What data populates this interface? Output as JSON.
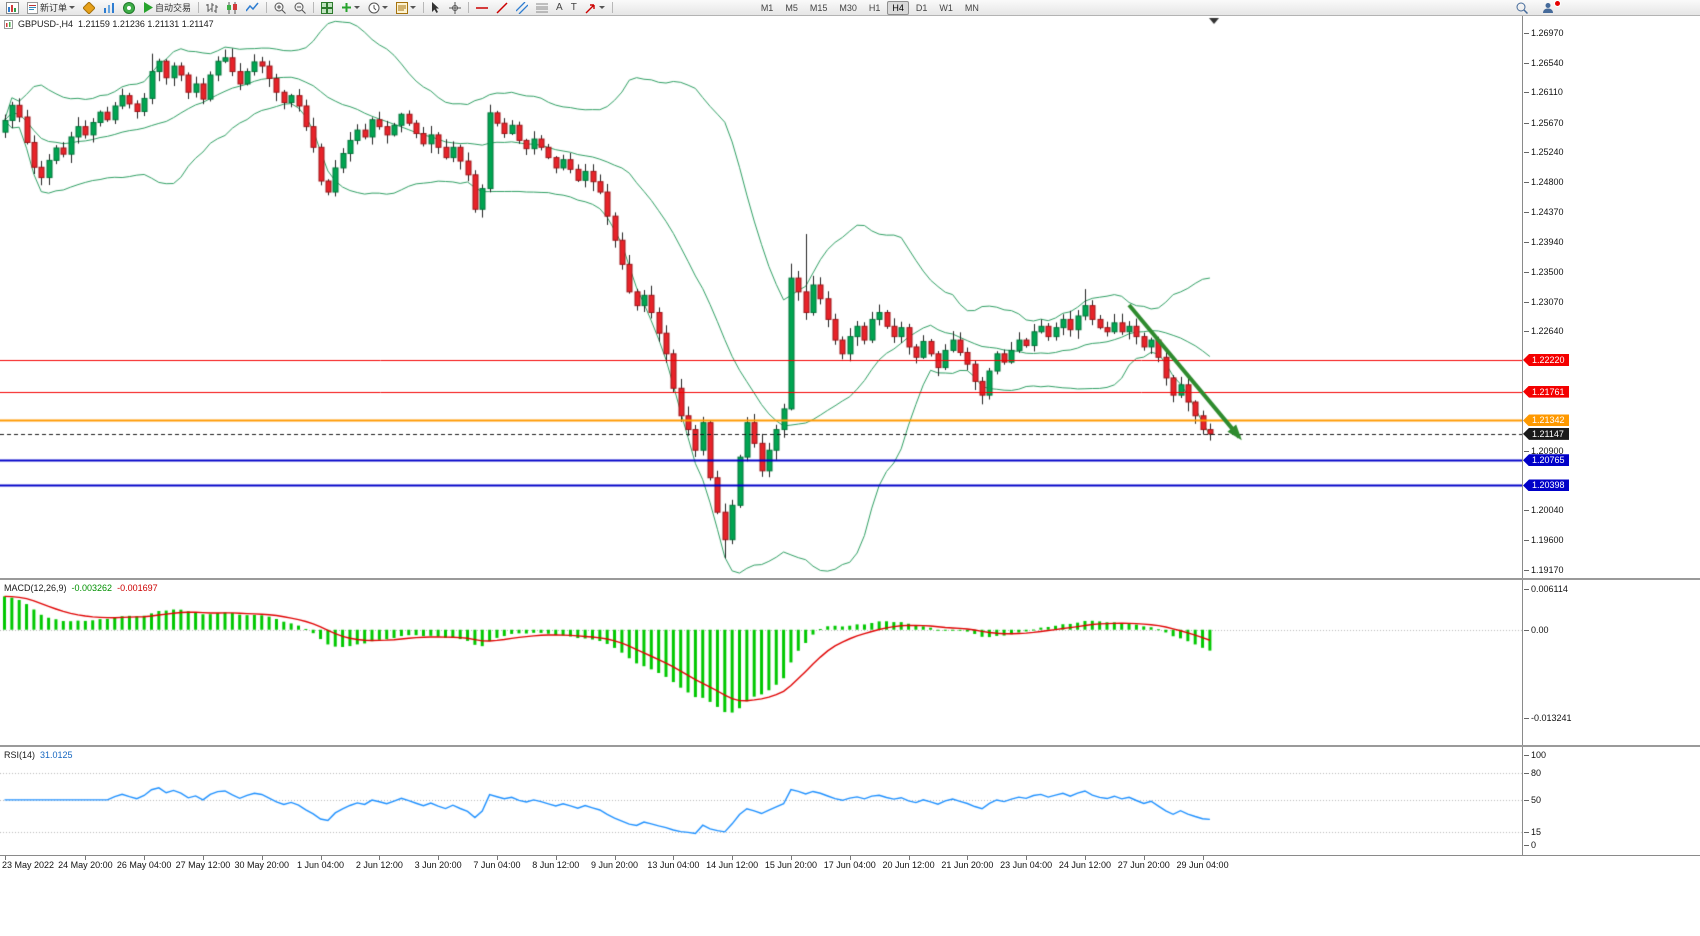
{
  "toolbar": {
    "new_order_label": "新订单",
    "autotrade_label": "自动交易",
    "text_tool": "A",
    "label_tool": "T",
    "timeframes": [
      "M1",
      "M5",
      "M15",
      "M30",
      "H1",
      "H4",
      "D1",
      "W1",
      "MN"
    ],
    "active_timeframe": "H4"
  },
  "chart_title": {
    "symbol_period": "GBPUSD-,H4",
    "ohlc": "1.21159 1.21236 1.21131 1.21147"
  },
  "indicators": {
    "macd": {
      "label": "MACD(12,26,9)",
      "value_main": "-0.003262",
      "value_signal": "-0.001697",
      "axis_labels": [
        "0.006114",
        "0.00",
        "-0.013241"
      ]
    },
    "rsi": {
      "label": "RSI(14)",
      "value": "31.0125",
      "axis_labels": [
        "100",
        "80",
        "50",
        "15",
        "0"
      ],
      "level_lines": [
        80,
        50,
        15
      ]
    }
  },
  "chart_data": {
    "type": "candlestick",
    "symbol": "GBPUSD-",
    "timeframe": "H4",
    "current_ohlc": {
      "open": 1.21159,
      "high": 1.21236,
      "low": 1.21131,
      "close": 1.21147
    },
    "first_open": 1.2553,
    "closes": [
      1.257,
      1.2592,
      1.2575,
      1.2538,
      1.2502,
      1.2487,
      1.2512,
      1.253,
      1.2521,
      1.2546,
      1.2561,
      1.2549,
      1.2567,
      1.2582,
      1.2571,
      1.2591,
      1.2606,
      1.2594,
      1.2583,
      1.2602,
      1.2641,
      1.2656,
      1.2632,
      1.2649,
      1.2636,
      1.2611,
      1.2623,
      1.2601,
      1.2636,
      1.2656,
      1.2661,
      1.2641,
      1.2623,
      1.2641,
      1.2655,
      1.2649,
      1.2631,
      1.2611,
      1.2596,
      1.2606,
      1.2591,
      1.2561,
      1.2531,
      1.2482,
      1.2466,
      1.2501,
      1.2522,
      1.2541,
      1.2556,
      1.2546,
      1.2571,
      1.2561,
      1.2549,
      1.2563,
      1.2579,
      1.2566,
      1.2551,
      1.2536,
      1.2549,
      1.2531,
      1.2516,
      1.2531,
      1.2511,
      1.2491,
      1.2441,
      1.2471,
      1.2581,
      1.2566,
      1.2551,
      1.2563,
      1.2541,
      1.2529,
      1.2543,
      1.2531,
      1.2516,
      1.2501,
      1.2513,
      1.2499,
      1.2483,
      1.2496,
      1.2481,
      1.2466,
      1.2431,
      1.2396,
      1.2361,
      1.2321,
      1.2301,
      1.2316,
      1.2291,
      1.2261,
      1.2231,
      1.2181,
      1.2141,
      1.2121,
      1.2091,
      1.2131,
      1.2051,
      1.2001,
      1.1961,
      1.2011,
      1.2081,
      1.2131,
      1.2101,
      1.2061,
      1.2091,
      1.2121,
      1.2151,
      1.2341,
      1.2321,
      1.2291,
      1.2331,
      1.2311,
      1.2281,
      1.2251,
      1.2231,
      1.2256,
      1.2271,
      1.2251,
      1.2281,
      1.2291,
      1.2271,
      1.2256,
      1.2269,
      1.2241,
      1.2226,
      1.2249,
      1.2231,
      1.2211,
      1.2236,
      1.2251,
      1.2233,
      1.2216,
      1.2191,
      1.2171,
      1.2206,
      1.2231,
      1.2219,
      1.2236,
      1.2251,
      1.2243,
      1.2263,
      1.2271,
      1.2256,
      1.2269,
      1.2281,
      1.2266,
      1.2286,
      1.2301,
      1.2281,
      1.2269,
      1.2263,
      1.2276,
      1.2263,
      1.2271,
      1.2256,
      1.2241,
      1.2251,
      1.2226,
      1.2196,
      1.2171,
      1.2186,
      1.2161,
      1.2141,
      1.2121,
      1.21147
    ],
    "wick_overrides": [
      {
        "bar": 5,
        "low": 1.2476
      },
      {
        "bar": 20,
        "high": 1.2667
      },
      {
        "bar": 30,
        "high": 1.2673
      },
      {
        "bar": 64,
        "low": 1.2436
      },
      {
        "bar": 98,
        "low": 1.1934
      },
      {
        "bar": 107,
        "high": 1.2362
      },
      {
        "bar": 109,
        "high": 1.2405
      },
      {
        "bar": 147,
        "high": 1.2325
      }
    ],
    "bollinger": {
      "period": 20,
      "deviation": 2
    },
    "macd_params": {
      "fast": 12,
      "slow": 26,
      "signal": 9
    },
    "rsi_params": {
      "period": 14
    },
    "levels": [
      {
        "price": 1.2222,
        "label": "1.22220",
        "color": "#f40000",
        "width": 1,
        "style": "solid"
      },
      {
        "price": 1.21761,
        "label": "1.21761",
        "color": "#f40000",
        "width": 1,
        "style": "solid"
      },
      {
        "price": 1.21342,
        "label": "1.21342",
        "color": "#ff9900",
        "width": 2,
        "style": "solid"
      },
      {
        "price": 1.21147,
        "label": "1.21147",
        "color": "#1a1a1a",
        "width": 1,
        "style": "dash",
        "role": "current-price"
      },
      {
        "price": 1.20765,
        "label": "1.20765",
        "color": "#0000c8",
        "width": 2,
        "style": "solid"
      },
      {
        "price": 1.20398,
        "label": "1.20398",
        "color": "#0000c8",
        "width": 2,
        "style": "solid"
      }
    ],
    "price_ticks": [
      "1.26970",
      "1.26540",
      "1.26110",
      "1.25670",
      "1.25240",
      "1.24800",
      "1.24370",
      "1.23940",
      "1.23500",
      "1.23070",
      "1.22640",
      "1.20900",
      "1.20040",
      "1.19600",
      "1.19170"
    ],
    "time_labels": [
      {
        "text": "23 May 2022",
        "bar": 0
      },
      {
        "text": "24 May 20:00",
        "bar": 11
      },
      {
        "text": "26 May 04:00",
        "bar": 19
      },
      {
        "text": "27 May 12:00",
        "bar": 27
      },
      {
        "text": "30 May 20:00",
        "bar": 35
      },
      {
        "text": "1 Jun 04:00",
        "bar": 43
      },
      {
        "text": "2 Jun 12:00",
        "bar": 51
      },
      {
        "text": "3 Jun 20:00",
        "bar": 59
      },
      {
        "text": "7 Jun 04:00",
        "bar": 67
      },
      {
        "text": "8 Jun 12:00",
        "bar": 75
      },
      {
        "text": "9 Jun 20:00",
        "bar": 83
      },
      {
        "text": "13 Jun 04:00",
        "bar": 91
      },
      {
        "text": "14 Jun 12:00",
        "bar": 99
      },
      {
        "text": "15 Jun 20:00",
        "bar": 107
      },
      {
        "text": "17 Jun 04:00",
        "bar": 115
      },
      {
        "text": "20 Jun 12:00",
        "bar": 123
      },
      {
        "text": "21 Jun 20:00",
        "bar": 131
      },
      {
        "text": "23 Jun 04:00",
        "bar": 139
      },
      {
        "text": "24 Jun 12:00",
        "bar": 147
      },
      {
        "text": "27 Jun 20:00",
        "bar": 155
      },
      {
        "text": "29 Jun 04:00",
        "bar": 163
      }
    ],
    "arrow": {
      "from_bar": 153,
      "from_price": 1.2302,
      "to_bar": 168,
      "to_price": 1.211
    }
  },
  "colors": {
    "candle_up": "#00a551",
    "candle_up_border": "#00753a",
    "candle_down": "#e8232a",
    "candle_down_border": "#9e1418",
    "wick": "#222222",
    "bollinger": "#2e9e62",
    "macd_hist": "#00c800",
    "macd_signal": "#e00000",
    "rsi_line": "#1e90ff",
    "level_dotted": "#b8b8b8",
    "arrow": "#2e8b2e"
  }
}
